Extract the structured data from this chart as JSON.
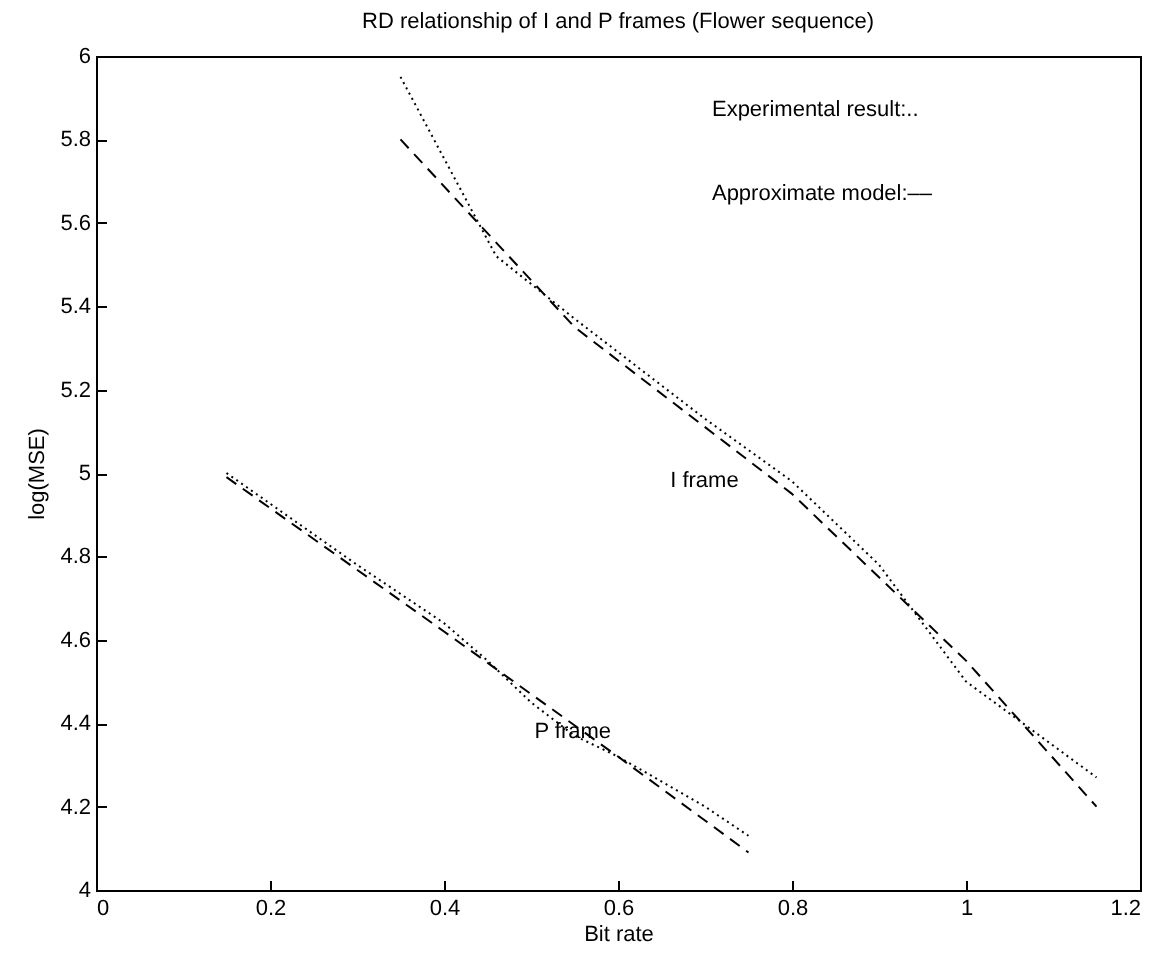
{
  "chart_data": {
    "type": "line",
    "title": "RD relationship of I and P frames (Flower sequence)",
    "xlabel": "Bit rate",
    "ylabel": "log(MSE)",
    "xlim": [
      0,
      1.2
    ],
    "xticks": [
      0,
      0.2,
      0.4,
      0.6,
      0.8,
      1,
      1.2
    ],
    "ylim": [
      4,
      6
    ],
    "yticks": [
      4,
      4.2,
      4.4,
      4.6,
      4.8,
      5,
      5.2,
      5.4,
      5.6,
      5.8,
      6
    ],
    "grid": false,
    "series": [
      {
        "color": "#000000",
        "line_style": "dotted",
        "x": [
          0.35,
          0.46,
          0.55,
          0.7,
          0.8,
          0.9,
          1.0,
          1.15
        ],
        "values": [
          5.95,
          5.52,
          5.37,
          5.13,
          4.98,
          4.78,
          4.5,
          4.27
        ]
      },
      {
        "color": "#000000",
        "line_style": "dashed",
        "x": [
          0.35,
          0.55,
          0.8,
          1.0,
          1.15
        ],
        "values": [
          5.8,
          5.35,
          4.95,
          4.55,
          4.2
        ]
      },
      {
        "color": "#000000",
        "line_style": "dotted",
        "x": [
          0.15,
          0.3,
          0.4,
          0.45,
          0.5,
          0.55,
          0.6,
          0.7,
          0.75
        ],
        "values": [
          5.0,
          4.78,
          4.64,
          4.55,
          4.45,
          4.37,
          4.32,
          4.2,
          4.13
        ]
      },
      {
        "color": "#000000",
        "line_style": "dashed",
        "x": [
          0.15,
          0.4,
          0.6,
          0.75
        ],
        "values": [
          4.99,
          4.62,
          4.32,
          4.09
        ]
      }
    ],
    "annotations": [
      "Experimental result:..",
      "Approximate model:––",
      "I frame",
      "P frame"
    ]
  }
}
